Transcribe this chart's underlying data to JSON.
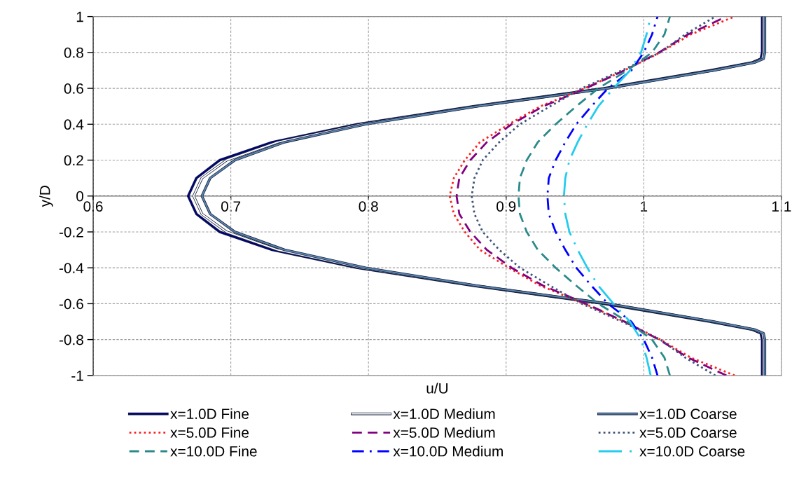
{
  "chart_data": {
    "type": "line",
    "xlabel": "u/U",
    "ylabel": "y/D",
    "xlim": [
      0.6,
      1.1
    ],
    "xticks": [
      0.6,
      0.7,
      0.8,
      0.9,
      1,
      1.1
    ],
    "ylim": [
      -1,
      1
    ],
    "yticks": [
      -1,
      -0.8,
      -0.6,
      -0.4,
      -0.2,
      0,
      0.2,
      0.4,
      0.6,
      0.8,
      1
    ],
    "grid": true,
    "legend": "bottom",
    "marker": "none",
    "series": [
      {
        "name": "x=1.0D Fine",
        "color": "#000080",
        "line_style": "solid",
        "x": [
          1.086,
          1.086,
          1.085,
          1.079,
          1.048,
          0.971,
          0.876,
          0.792,
          0.73,
          0.692,
          0.675,
          0.669,
          0.675,
          0.692,
          0.73,
          0.792,
          0.876,
          0.971,
          1.048,
          1.079,
          1.085,
          1.086,
          1.086
        ],
        "values": [
          -1,
          -0.8,
          -0.765,
          -0.745,
          -0.7,
          -0.6,
          -0.5,
          -0.4,
          -0.3,
          -0.2,
          -0.1,
          0,
          0.1,
          0.2,
          0.3,
          0.4,
          0.5,
          0.6,
          0.7,
          0.745,
          0.765,
          0.8,
          1
        ]
      },
      {
        "name": "x=1.0D Medium",
        "color": "#ffffff",
        "line_style": "solid",
        "x": [
          1.087,
          1.087,
          1.086,
          1.08,
          1.05,
          0.973,
          0.878,
          0.795,
          0.734,
          0.697,
          0.679,
          0.673,
          0.679,
          0.697,
          0.734,
          0.795,
          0.878,
          0.973,
          1.05,
          1.08,
          1.086,
          1.087,
          1.087
        ],
        "values": [
          -1,
          -0.8,
          -0.765,
          -0.745,
          -0.7,
          -0.6,
          -0.5,
          -0.4,
          -0.3,
          -0.2,
          -0.1,
          0,
          0.1,
          0.2,
          0.3,
          0.4,
          0.5,
          0.6,
          0.7,
          0.745,
          0.765,
          0.8,
          1
        ]
      },
      {
        "name": "x=1.0D Coarse",
        "color": "#5b86b0",
        "line_style": "solid",
        "x": [
          1.088,
          1.088,
          1.087,
          1.081,
          1.051,
          0.974,
          0.879,
          0.798,
          0.739,
          0.703,
          0.685,
          0.679,
          0.685,
          0.703,
          0.739,
          0.798,
          0.879,
          0.974,
          1.051,
          1.081,
          1.087,
          1.088,
          1.088
        ],
        "values": [
          -1,
          -0.8,
          -0.765,
          -0.745,
          -0.7,
          -0.6,
          -0.5,
          -0.4,
          -0.3,
          -0.2,
          -0.1,
          0,
          0.1,
          0.2,
          0.3,
          0.4,
          0.5,
          0.6,
          0.7,
          0.745,
          0.765,
          0.8,
          1
        ]
      },
      {
        "name": "x=5.0D Fine",
        "color": "#ff2020",
        "line_style": "dotted",
        "x": [
          1.066,
          1.034,
          1.012,
          0.986,
          0.957,
          0.925,
          0.902,
          0.881,
          0.87,
          0.862,
          0.859,
          0.862,
          0.87,
          0.881,
          0.902,
          0.925,
          0.957,
          0.986,
          1.012,
          1.034,
          1.066
        ],
        "values": [
          -1,
          -0.9,
          -0.8,
          -0.7,
          -0.6,
          -0.5,
          -0.4,
          -0.3,
          -0.2,
          -0.1,
          0,
          0.1,
          0.2,
          0.3,
          0.4,
          0.5,
          0.6,
          0.7,
          0.8,
          0.9,
          1
        ]
      },
      {
        "name": "x=5.0D Medium",
        "color": "#800080",
        "line_style": "dashed",
        "x": [
          1.06,
          1.032,
          1.011,
          0.986,
          0.958,
          0.927,
          0.904,
          0.886,
          0.874,
          0.866,
          0.864,
          0.866,
          0.874,
          0.886,
          0.904,
          0.927,
          0.958,
          0.986,
          1.011,
          1.032,
          1.06
        ],
        "values": [
          -1,
          -0.9,
          -0.8,
          -0.7,
          -0.6,
          -0.5,
          -0.4,
          -0.3,
          -0.2,
          -0.1,
          0,
          0.1,
          0.2,
          0.3,
          0.4,
          0.5,
          0.6,
          0.7,
          0.8,
          0.9,
          1
        ]
      },
      {
        "name": "x=5.0D Coarse",
        "color": "#3d5478",
        "line_style": "dotted",
        "x": [
          1.052,
          1.03,
          1.012,
          0.984,
          0.955,
          0.932,
          0.91,
          0.895,
          0.883,
          0.877,
          0.875,
          0.877,
          0.883,
          0.895,
          0.91,
          0.932,
          0.955,
          0.984,
          1.012,
          1.03,
          1.052
        ],
        "values": [
          -1,
          -0.9,
          -0.8,
          -0.7,
          -0.6,
          -0.5,
          -0.4,
          -0.3,
          -0.2,
          -0.1,
          0,
          0.1,
          0.2,
          0.3,
          0.4,
          0.5,
          0.6,
          0.7,
          0.8,
          0.9,
          1
        ]
      },
      {
        "name": "x=10.0D Fine",
        "color": "#2a8a8a",
        "line_style": "dashed",
        "x": [
          1.019,
          1.015,
          1.006,
          0.988,
          0.967,
          0.951,
          0.936,
          0.923,
          0.915,
          0.91,
          0.909,
          0.91,
          0.915,
          0.923,
          0.936,
          0.951,
          0.967,
          0.988,
          1.006,
          1.015,
          1.019
        ],
        "values": [
          -1,
          -0.9,
          -0.8,
          -0.7,
          -0.6,
          -0.5,
          -0.4,
          -0.3,
          -0.2,
          -0.1,
          0,
          0.1,
          0.2,
          0.3,
          0.4,
          0.5,
          0.6,
          0.7,
          0.8,
          0.9,
          1
        ]
      },
      {
        "name": "x=10.0D Medium",
        "color": "#0000ff",
        "line_style": "dashdot",
        "x": [
          1.01,
          1.006,
          1.0,
          0.991,
          0.974,
          0.962,
          0.951,
          0.943,
          0.936,
          0.931,
          0.93,
          0.931,
          0.936,
          0.943,
          0.951,
          0.962,
          0.974,
          0.991,
          1.0,
          1.006,
          1.01
        ],
        "values": [
          -1,
          -0.9,
          -0.8,
          -0.7,
          -0.6,
          -0.5,
          -0.4,
          -0.3,
          -0.2,
          -0.1,
          0,
          0.1,
          0.2,
          0.3,
          0.4,
          0.5,
          0.6,
          0.7,
          0.8,
          0.9,
          1
        ]
      },
      {
        "name": "x=10.0D Coarse",
        "color": "#22ccee",
        "line_style": "longdashdot",
        "x": [
          1.005,
          1.002,
          0.998,
          0.99,
          0.978,
          0.967,
          0.959,
          0.952,
          0.946,
          0.943,
          0.942,
          0.943,
          0.946,
          0.952,
          0.959,
          0.967,
          0.978,
          0.99,
          0.998,
          1.002,
          1.005
        ],
        "values": [
          -1,
          -0.9,
          -0.8,
          -0.7,
          -0.6,
          -0.5,
          -0.4,
          -0.3,
          -0.2,
          -0.1,
          0,
          0.1,
          0.2,
          0.3,
          0.4,
          0.5,
          0.6,
          0.7,
          0.8,
          0.9,
          1
        ]
      }
    ]
  }
}
